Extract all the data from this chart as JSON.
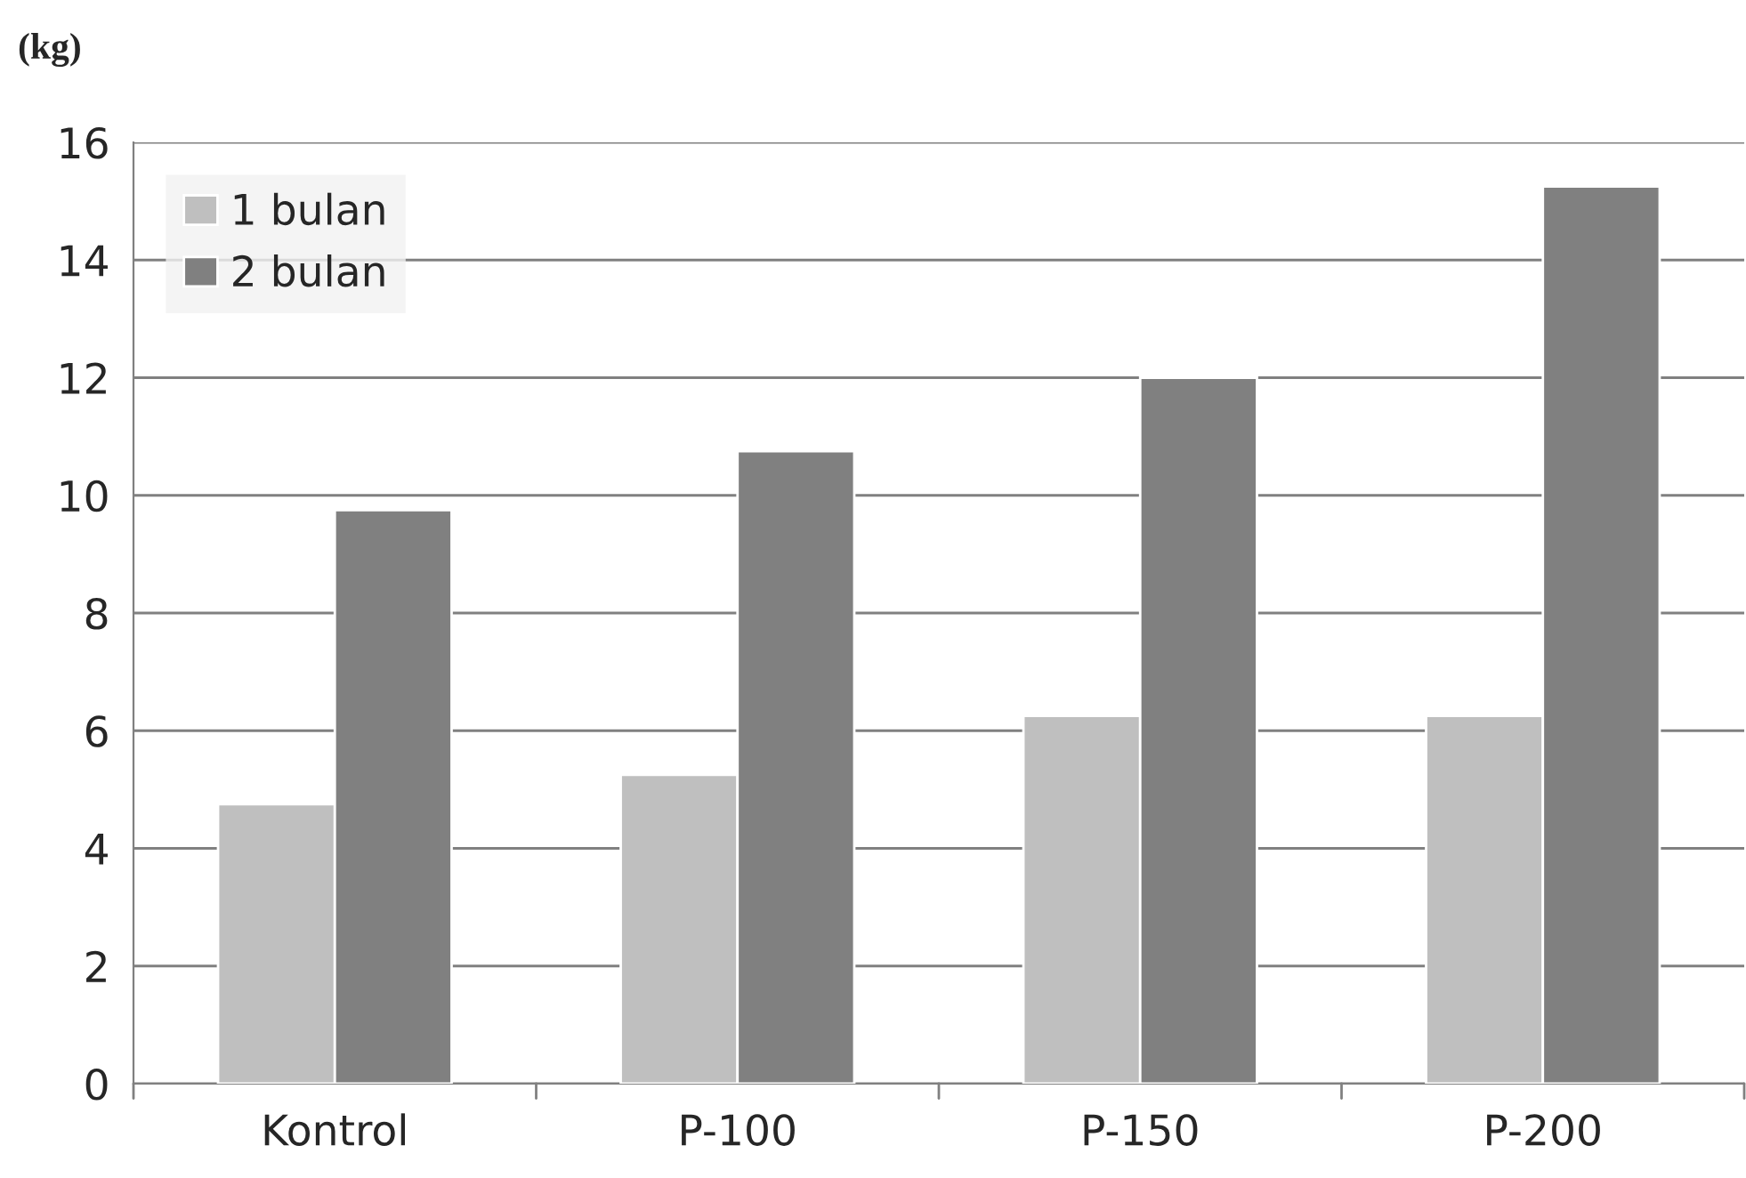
{
  "chart_data": {
    "type": "bar",
    "ylabel": "(kg)",
    "categories": [
      "Kontrol",
      "P-100",
      "P-150",
      "P-200"
    ],
    "series": [
      {
        "name": "1 bulan",
        "color": "#bfbfbf",
        "values": [
          4.75,
          5.25,
          6.25,
          6.25
        ]
      },
      {
        "name": "2 bulan",
        "color": "#808080",
        "values": [
          9.75,
          10.75,
          12,
          15.25
        ]
      }
    ],
    "ylim": [
      0,
      16
    ],
    "yticks": [
      0,
      2,
      4,
      6,
      8,
      10,
      12,
      14,
      16
    ],
    "grid": "y",
    "legend": "top left"
  }
}
